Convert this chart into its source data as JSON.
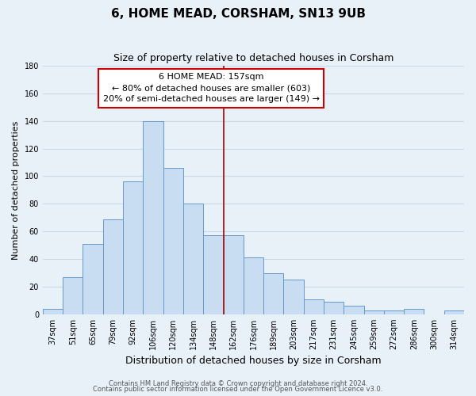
{
  "title": "6, HOME MEAD, CORSHAM, SN13 9UB",
  "subtitle": "Size of property relative to detached houses in Corsham",
  "xlabel": "Distribution of detached houses by size in Corsham",
  "ylabel": "Number of detached properties",
  "bar_labels": [
    "37sqm",
    "51sqm",
    "65sqm",
    "79sqm",
    "92sqm",
    "106sqm",
    "120sqm",
    "134sqm",
    "148sqm",
    "162sqm",
    "176sqm",
    "189sqm",
    "203sqm",
    "217sqm",
    "231sqm",
    "245sqm",
    "259sqm",
    "272sqm",
    "286sqm",
    "300sqm",
    "314sqm"
  ],
  "bar_values": [
    4,
    27,
    51,
    69,
    96,
    140,
    106,
    80,
    57,
    57,
    41,
    30,
    25,
    11,
    9,
    6,
    3,
    3,
    4,
    0,
    3
  ],
  "bar_color": "#c9ddf2",
  "bar_edge_color": "#6699cc",
  "vline_x_index": 9,
  "vline_color": "#aa0000",
  "annotation_title": "6 HOME MEAD: 157sqm",
  "annotation_line1": "← 80% of detached houses are smaller (603)",
  "annotation_line2": "20% of semi-detached houses are larger (149) →",
  "annotation_box_color": "#cc0000",
  "ylim": [
    0,
    180
  ],
  "yticks": [
    0,
    20,
    40,
    60,
    80,
    100,
    120,
    140,
    160,
    180
  ],
  "footer1": "Contains HM Land Registry data © Crown copyright and database right 2024.",
  "footer2": "Contains public sector information licensed under the Open Government Licence v3.0.",
  "bg_color": "#e8f0f8",
  "grid_color": "#c8d8e8",
  "title_fontsize": 11,
  "subtitle_fontsize": 9,
  "xlabel_fontsize": 9,
  "ylabel_fontsize": 8,
  "tick_fontsize": 7,
  "annot_fontsize": 8,
  "footer_fontsize": 6
}
